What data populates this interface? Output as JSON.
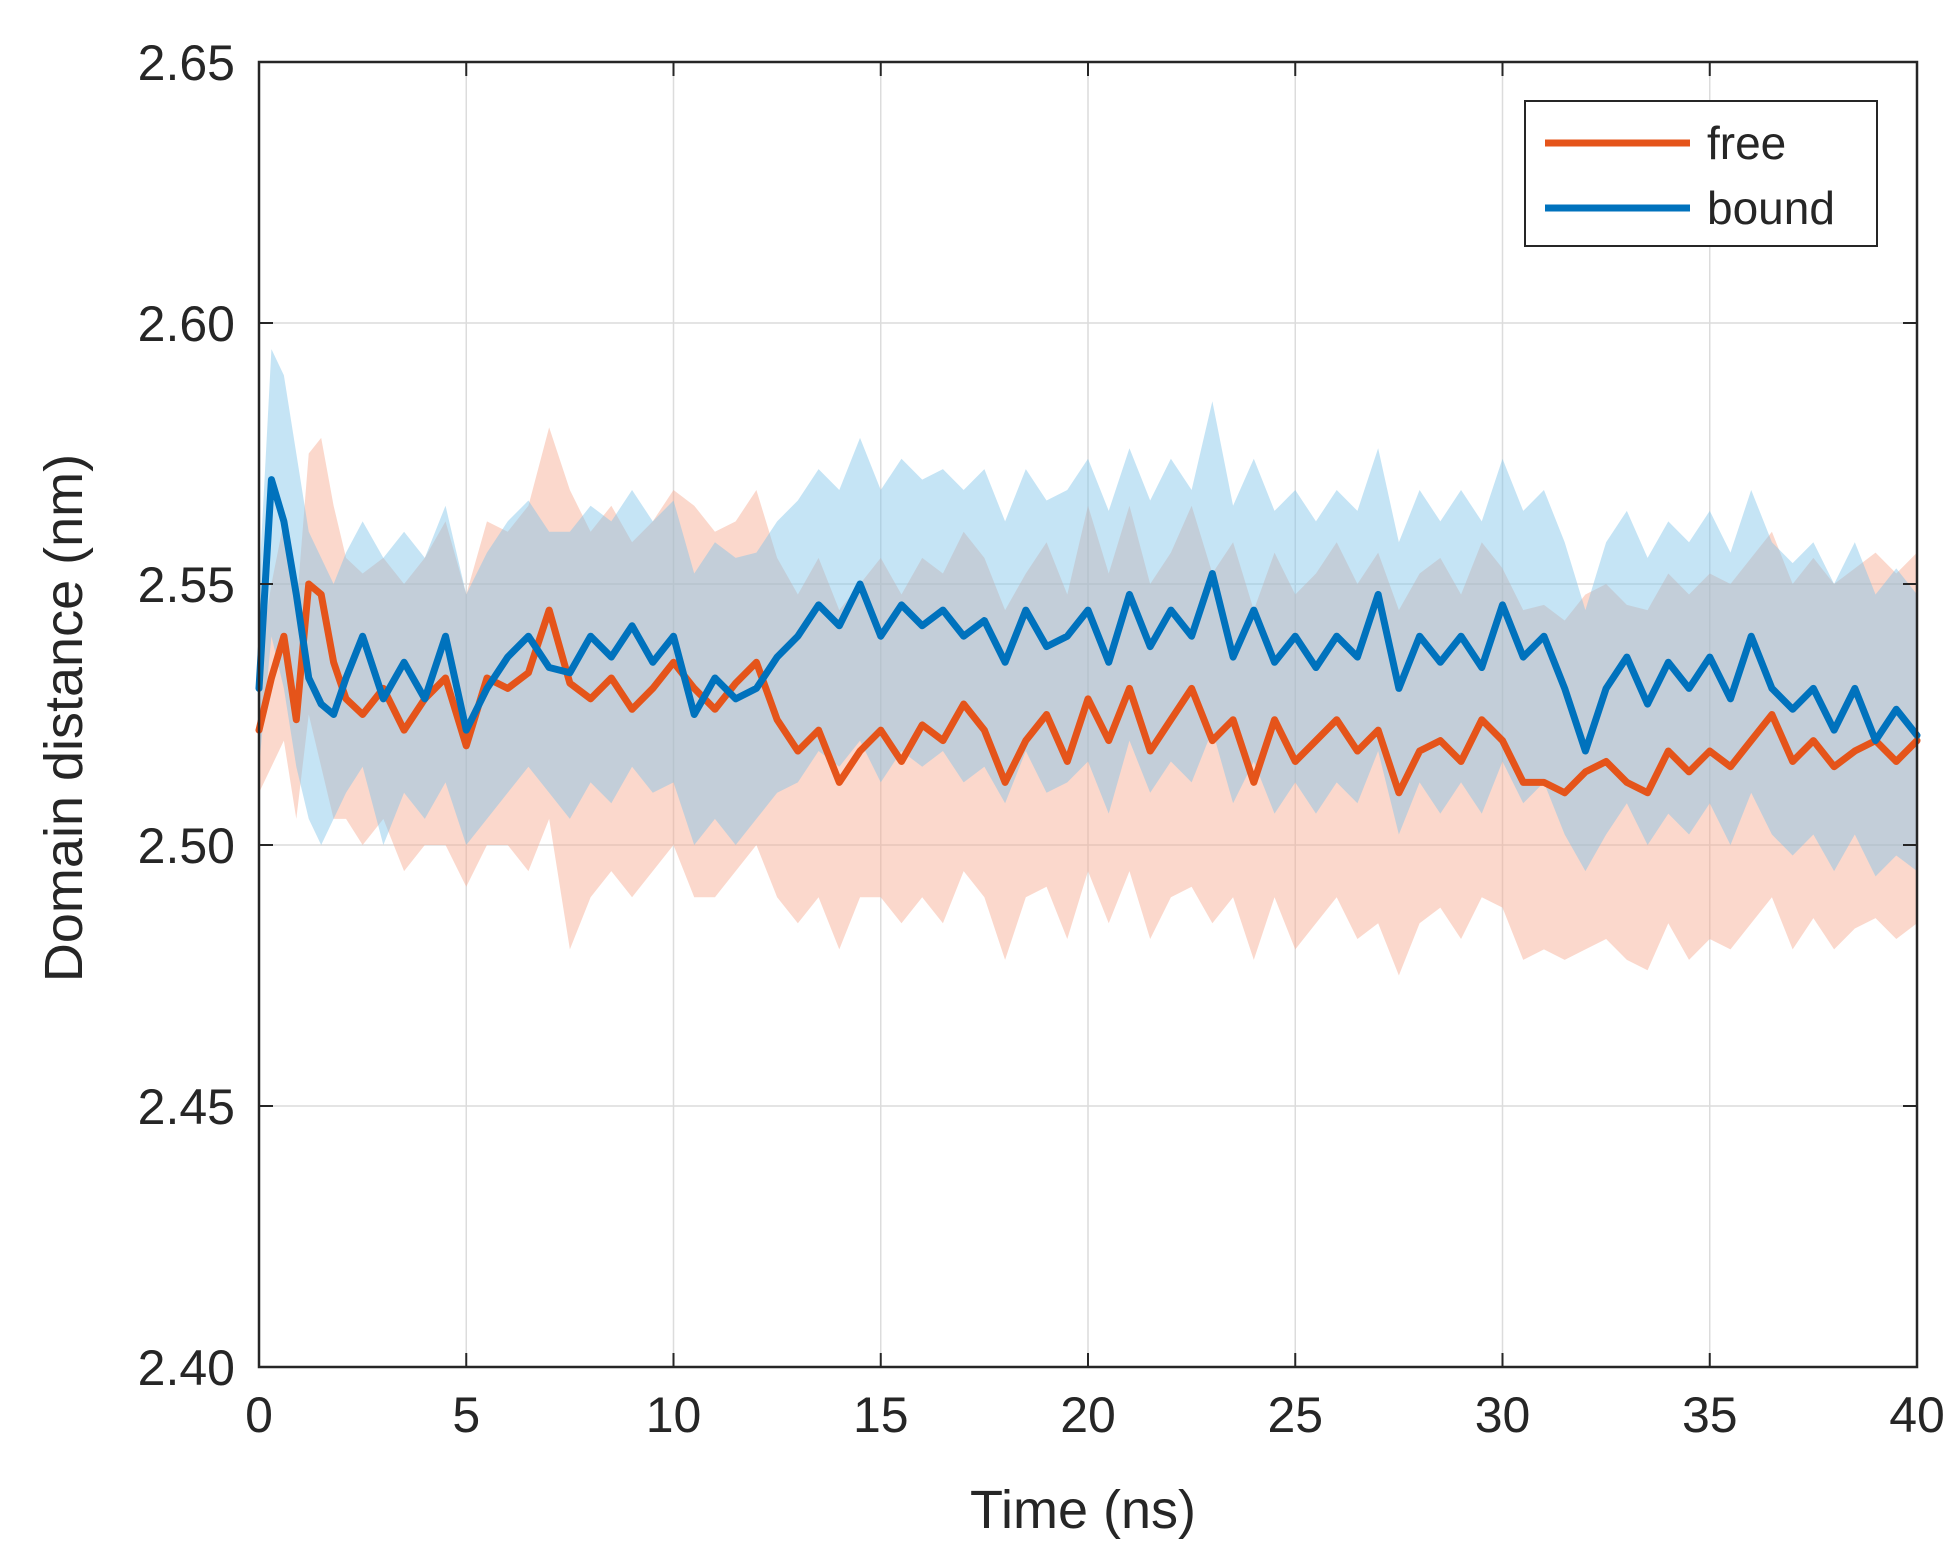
{
  "chart_data": {
    "type": "line",
    "title": "",
    "xlabel": "Time (ns)",
    "ylabel": "Domain distance (nm)",
    "xlim": [
      0,
      40
    ],
    "ylim": [
      2.4,
      2.65
    ],
    "xticks": [
      0,
      5,
      10,
      15,
      20,
      25,
      30,
      35,
      40
    ],
    "xtick_labels": [
      "0",
      "5",
      "10",
      "15",
      "20",
      "25",
      "30",
      "35",
      "40"
    ],
    "yticks": [
      2.4,
      2.45,
      2.5,
      2.55,
      2.6,
      2.65
    ],
    "ytick_labels": [
      "2.40",
      "2.45",
      "2.50",
      "2.55",
      "2.60",
      "2.65"
    ],
    "grid": true,
    "legend_position": "top-right",
    "series": [
      {
        "name": "free",
        "color": "#E5541A",
        "band_color": "#F7A98D",
        "x": [
          0,
          0.3,
          0.6,
          0.9,
          1.2,
          1.5,
          1.8,
          2.1,
          2.5,
          3.0,
          3.5,
          4.0,
          4.5,
          5.0,
          5.5,
          6.0,
          6.5,
          7.0,
          7.5,
          8.0,
          8.5,
          9.0,
          9.5,
          10.0,
          10.5,
          11.0,
          11.5,
          12.0,
          12.5,
          13.0,
          13.5,
          14.0,
          14.5,
          15.0,
          15.5,
          16.0,
          16.5,
          17.0,
          17.5,
          18.0,
          18.5,
          19.0,
          19.5,
          20.0,
          20.5,
          21.0,
          21.5,
          22.0,
          22.5,
          23.0,
          23.5,
          24.0,
          24.5,
          25.0,
          25.5,
          26.0,
          26.5,
          27.0,
          27.5,
          28.0,
          28.5,
          29.0,
          29.5,
          30.0,
          30.5,
          31.0,
          31.5,
          32.0,
          32.5,
          33.0,
          33.5,
          34.0,
          34.5,
          35.0,
          35.5,
          36.0,
          36.5,
          37.0,
          37.5,
          38.0,
          38.5,
          39.0,
          39.5,
          40.0
        ],
        "y": [
          2.522,
          2.532,
          2.54,
          2.524,
          2.55,
          2.548,
          2.535,
          2.528,
          2.525,
          2.53,
          2.522,
          2.528,
          2.532,
          2.519,
          2.532,
          2.53,
          2.533,
          2.545,
          2.531,
          2.528,
          2.532,
          2.526,
          2.53,
          2.535,
          2.53,
          2.526,
          2.531,
          2.535,
          2.524,
          2.518,
          2.522,
          2.512,
          2.518,
          2.522,
          2.516,
          2.523,
          2.52,
          2.527,
          2.522,
          2.512,
          2.52,
          2.525,
          2.516,
          2.528,
          2.52,
          2.53,
          2.518,
          2.524,
          2.53,
          2.52,
          2.524,
          2.512,
          2.524,
          2.516,
          2.52,
          2.524,
          2.518,
          2.522,
          2.51,
          2.518,
          2.52,
          2.516,
          2.524,
          2.52,
          2.512,
          2.512,
          2.51,
          2.514,
          2.516,
          2.512,
          2.51,
          2.518,
          2.514,
          2.518,
          2.515,
          2.52,
          2.525,
          2.516,
          2.52,
          2.515,
          2.518,
          2.52,
          2.516,
          2.52
        ],
        "lower": [
          2.51,
          2.515,
          2.52,
          2.505,
          2.525,
          2.515,
          2.505,
          2.505,
          2.5,
          2.505,
          2.495,
          2.5,
          2.5,
          2.492,
          2.5,
          2.5,
          2.495,
          2.505,
          2.48,
          2.49,
          2.495,
          2.49,
          2.495,
          2.5,
          2.49,
          2.49,
          2.495,
          2.5,
          2.49,
          2.485,
          2.49,
          2.48,
          2.49,
          2.49,
          2.485,
          2.49,
          2.485,
          2.495,
          2.49,
          2.478,
          2.49,
          2.492,
          2.482,
          2.495,
          2.485,
          2.495,
          2.482,
          2.49,
          2.492,
          2.485,
          2.49,
          2.478,
          2.49,
          2.48,
          2.485,
          2.49,
          2.482,
          2.485,
          2.475,
          2.485,
          2.488,
          2.482,
          2.49,
          2.488,
          2.478,
          2.48,
          2.478,
          2.48,
          2.482,
          2.478,
          2.476,
          2.485,
          2.478,
          2.482,
          2.48,
          2.485,
          2.49,
          2.48,
          2.486,
          2.48,
          2.484,
          2.486,
          2.482,
          2.485
        ],
        "upper": [
          2.535,
          2.55,
          2.562,
          2.545,
          2.575,
          2.578,
          2.565,
          2.555,
          2.552,
          2.555,
          2.55,
          2.555,
          2.562,
          2.548,
          2.562,
          2.56,
          2.565,
          2.58,
          2.568,
          2.56,
          2.565,
          2.558,
          2.562,
          2.568,
          2.565,
          2.56,
          2.562,
          2.568,
          2.555,
          2.548,
          2.555,
          2.545,
          2.55,
          2.555,
          2.548,
          2.555,
          2.552,
          2.56,
          2.555,
          2.545,
          2.552,
          2.558,
          2.548,
          2.565,
          2.552,
          2.565,
          2.55,
          2.556,
          2.565,
          2.552,
          2.558,
          2.545,
          2.556,
          2.548,
          2.552,
          2.558,
          2.55,
          2.556,
          2.545,
          2.552,
          2.555,
          2.548,
          2.558,
          2.553,
          2.545,
          2.546,
          2.543,
          2.548,
          2.55,
          2.546,
          2.545,
          2.552,
          2.548,
          2.552,
          2.55,
          2.555,
          2.56,
          2.55,
          2.555,
          2.55,
          2.553,
          2.556,
          2.552,
          2.556
        ]
      },
      {
        "name": "bound",
        "color": "#0072BD",
        "band_color": "#7FC3E8",
        "x": [
          0,
          0.3,
          0.6,
          0.9,
          1.2,
          1.5,
          1.8,
          2.1,
          2.5,
          3.0,
          3.5,
          4.0,
          4.5,
          5.0,
          5.5,
          6.0,
          6.5,
          7.0,
          7.5,
          8.0,
          8.5,
          9.0,
          9.5,
          10.0,
          10.5,
          11.0,
          11.5,
          12.0,
          12.5,
          13.0,
          13.5,
          14.0,
          14.5,
          15.0,
          15.5,
          16.0,
          16.5,
          17.0,
          17.5,
          18.0,
          18.5,
          19.0,
          19.5,
          20.0,
          20.5,
          21.0,
          21.5,
          22.0,
          22.5,
          23.0,
          23.5,
          24.0,
          24.5,
          25.0,
          25.5,
          26.0,
          26.5,
          27.0,
          27.5,
          28.0,
          28.5,
          29.0,
          29.5,
          30.0,
          30.5,
          31.0,
          31.5,
          32.0,
          32.5,
          33.0,
          33.5,
          34.0,
          34.5,
          35.0,
          35.5,
          36.0,
          36.5,
          37.0,
          37.5,
          38.0,
          38.5,
          39.0,
          39.5,
          40.0
        ],
        "y": [
          2.53,
          2.57,
          2.562,
          2.548,
          2.532,
          2.527,
          2.525,
          2.532,
          2.54,
          2.528,
          2.535,
          2.528,
          2.54,
          2.522,
          2.53,
          2.536,
          2.54,
          2.534,
          2.533,
          2.54,
          2.536,
          2.542,
          2.535,
          2.54,
          2.525,
          2.532,
          2.528,
          2.53,
          2.536,
          2.54,
          2.546,
          2.542,
          2.55,
          2.54,
          2.546,
          2.542,
          2.545,
          2.54,
          2.543,
          2.535,
          2.545,
          2.538,
          2.54,
          2.545,
          2.535,
          2.548,
          2.538,
          2.545,
          2.54,
          2.552,
          2.536,
          2.545,
          2.535,
          2.54,
          2.534,
          2.54,
          2.536,
          2.548,
          2.53,
          2.54,
          2.535,
          2.54,
          2.534,
          2.546,
          2.536,
          2.54,
          2.53,
          2.518,
          2.53,
          2.536,
          2.527,
          2.535,
          2.53,
          2.536,
          2.528,
          2.54,
          2.53,
          2.526,
          2.53,
          2.522,
          2.53,
          2.52,
          2.526,
          2.521
        ],
        "lower": [
          2.515,
          2.54,
          2.53,
          2.515,
          2.505,
          2.5,
          2.505,
          2.51,
          2.515,
          2.5,
          2.51,
          2.505,
          2.512,
          2.5,
          2.505,
          2.51,
          2.515,
          2.51,
          2.505,
          2.512,
          2.508,
          2.515,
          2.51,
          2.512,
          2.5,
          2.505,
          2.5,
          2.505,
          2.51,
          2.512,
          2.518,
          2.515,
          2.52,
          2.512,
          2.518,
          2.515,
          2.518,
          2.512,
          2.515,
          2.508,
          2.518,
          2.51,
          2.512,
          2.516,
          2.506,
          2.52,
          2.51,
          2.516,
          2.512,
          2.522,
          2.508,
          2.516,
          2.506,
          2.512,
          2.506,
          2.512,
          2.508,
          2.518,
          2.502,
          2.512,
          2.506,
          2.512,
          2.506,
          2.516,
          2.508,
          2.512,
          2.502,
          2.495,
          2.502,
          2.508,
          2.5,
          2.506,
          2.502,
          2.508,
          2.5,
          2.51,
          2.502,
          2.498,
          2.502,
          2.495,
          2.502,
          2.494,
          2.498,
          2.495
        ],
        "upper": [
          2.55,
          2.595,
          2.59,
          2.575,
          2.56,
          2.555,
          2.55,
          2.556,
          2.562,
          2.555,
          2.56,
          2.555,
          2.565,
          2.548,
          2.556,
          2.562,
          2.566,
          2.56,
          2.56,
          2.565,
          2.562,
          2.568,
          2.562,
          2.566,
          2.552,
          2.558,
          2.555,
          2.556,
          2.562,
          2.566,
          2.572,
          2.568,
          2.578,
          2.568,
          2.574,
          2.57,
          2.572,
          2.568,
          2.572,
          2.562,
          2.572,
          2.566,
          2.568,
          2.574,
          2.564,
          2.576,
          2.566,
          2.574,
          2.568,
          2.585,
          2.565,
          2.574,
          2.564,
          2.568,
          2.562,
          2.568,
          2.564,
          2.576,
          2.558,
          2.568,
          2.562,
          2.568,
          2.562,
          2.574,
          2.564,
          2.568,
          2.558,
          2.545,
          2.558,
          2.564,
          2.555,
          2.562,
          2.558,
          2.564,
          2.556,
          2.568,
          2.558,
          2.554,
          2.558,
          2.55,
          2.558,
          2.548,
          2.553,
          2.548
        ]
      }
    ]
  }
}
